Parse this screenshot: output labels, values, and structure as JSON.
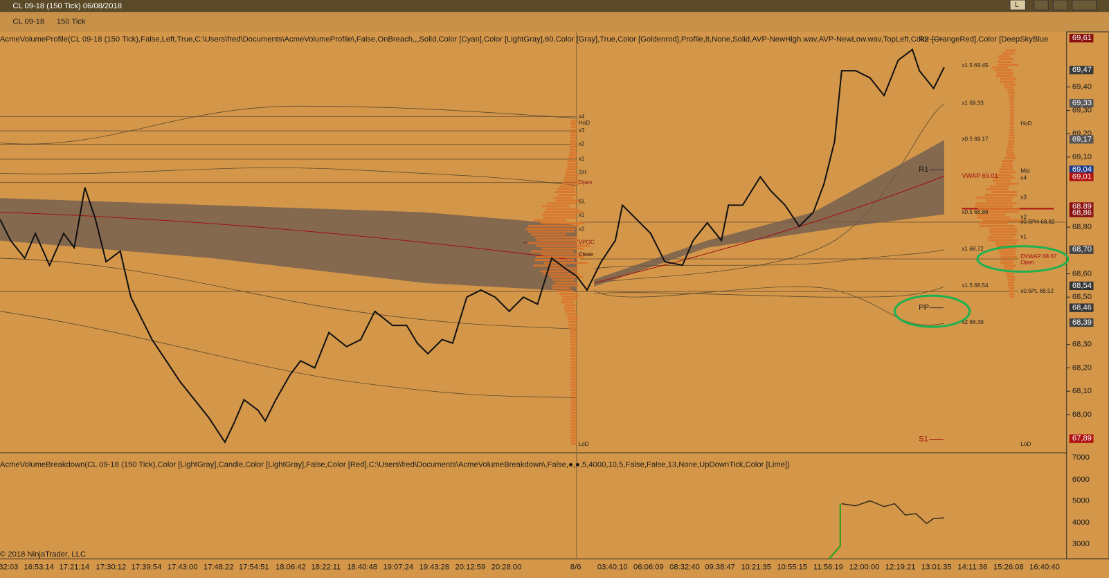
{
  "window": {
    "title": "CL 09-18 (150 Tick)  06/08/2018",
    "buttons": [
      "L"
    ]
  },
  "toolbar": {
    "instrument": "CL 09-18",
    "period": "150 Tick"
  },
  "indicators": {
    "top": "AcmeVolumeProfile(CL 09-18 (150 Tick),False,Left,True,C:\\Users\\fred\\Documents\\AcmeVolumeProfile\\,False,OnBreach,,,Solid,Color [Cyan],Color [LightGray],60,Color [Gray],True,Color [Goldenrod],Profile,8,None,Solid,AVP-NewHigh.wav,AVP-NewLow.wav,TopLeft,Color [OrangeRed],Color [DeepSkyBlue",
    "bottom": "AcmeVolumeBreakdown(CL 09-18 (150 Tick),Color [LightGray],Candle,Color [LightGray],False,Color [Red],C:\\Users\\fred\\Documents\\AcmeVolumeBreakdown\\,False,●,●,5,4000,10,5,False,False,13,None,UpDownTick,Color [Lime])"
  },
  "copyright": "© 2018 NinjaTrader, LLC",
  "price_axis": {
    "ticks": [
      "69,40",
      "69,30",
      "69,20",
      "69,10",
      "68,80",
      "68,60",
      "68,50",
      "68,30",
      "68,20",
      "68,10",
      "68,00"
    ],
    "boxes": [
      "69,61",
      "69,47",
      "69,33",
      "69,17",
      "69,04",
      "69,01",
      "68,89",
      "68,86",
      "68,70",
      "68,54",
      "68,46",
      "68,39",
      "67,89"
    ]
  },
  "volume_axis": {
    "ticks": [
      "7000",
      "6000",
      "5000",
      "4000",
      "3000"
    ]
  },
  "time_axis": {
    "labels": [
      "32:03",
      "16:53:14",
      "17:21:14",
      "17:30:12",
      "17:39:54",
      "17:43:00",
      "17:48:22",
      "17:54:51",
      "18:06:42",
      "18:22:11",
      "18:40:48",
      "19:07:24",
      "19:43:28",
      "20:12:59",
      "20:28:00",
      "8/6",
      "03:40:10",
      "06:06:09",
      "08:32:40",
      "09:38:47",
      "10:21:35",
      "10:55:15",
      "11:56:19",
      "12:00:00",
      "12:19:21",
      "13:01:35",
      "14:11:36",
      "15:26:08",
      "16:40:40"
    ]
  },
  "left_profile_labels": [
    "x4",
    "HoD",
    "x3",
    "x2",
    "x1",
    "SH",
    "Open",
    "SL",
    "x1",
    "x2",
    "VPOC",
    "Close",
    "LoD"
  ],
  "vwap_labels": [
    "x1.5  69.45",
    "x1  69.33",
    "x0.5  69.17",
    "VWAP  69.01",
    "x0.5  68.86",
    "x1  68.72",
    "x1.5  68.54",
    "x2  68.39"
  ],
  "right_profile_labels": [
    "HoD",
    "Mid",
    "x4",
    "x3",
    "x2",
    "x0.5PH 68.82",
    "x1",
    "DVWAP 68.67",
    "Open",
    "x0.5PL 68.52",
    "LoD"
  ],
  "pivots": [
    "R2",
    "R1",
    "PP",
    "S1"
  ]
}
